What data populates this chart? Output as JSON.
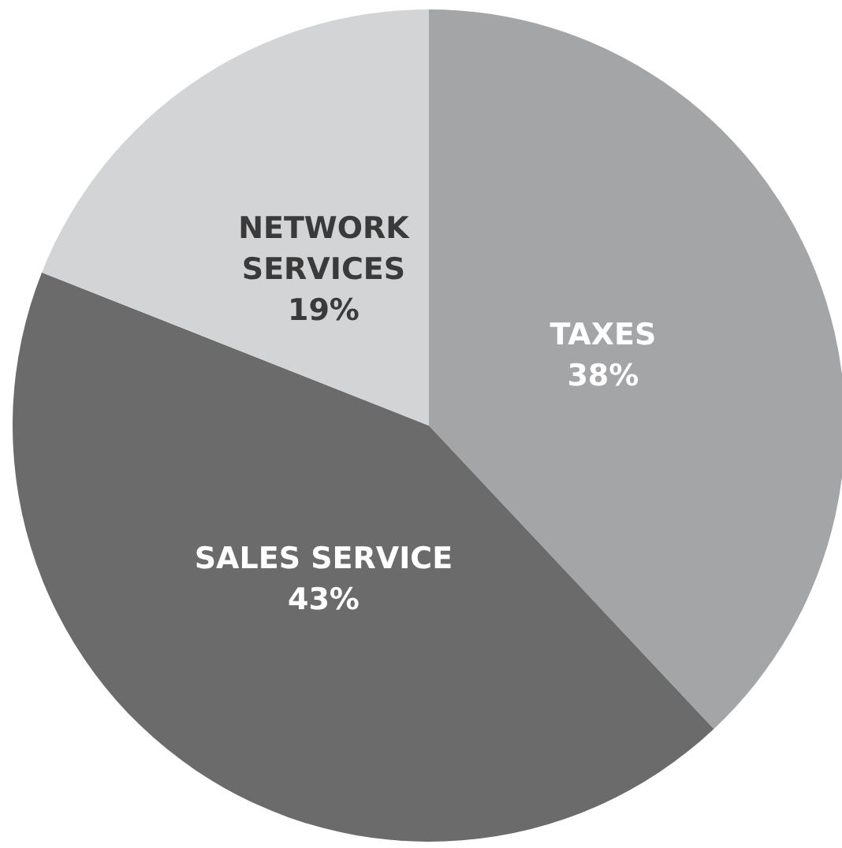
{
  "chart_data": {
    "type": "pie",
    "categories": [
      "TAXES",
      "SALES SERVICE",
      "NETWORK SERVICES"
    ],
    "values": [
      38,
      43,
      19
    ],
    "colors": [
      "#a3a5a6",
      "#6b6b6b",
      "#d3d4d5"
    ],
    "value_labels": [
      "38%",
      "43%",
      "19%"
    ]
  }
}
